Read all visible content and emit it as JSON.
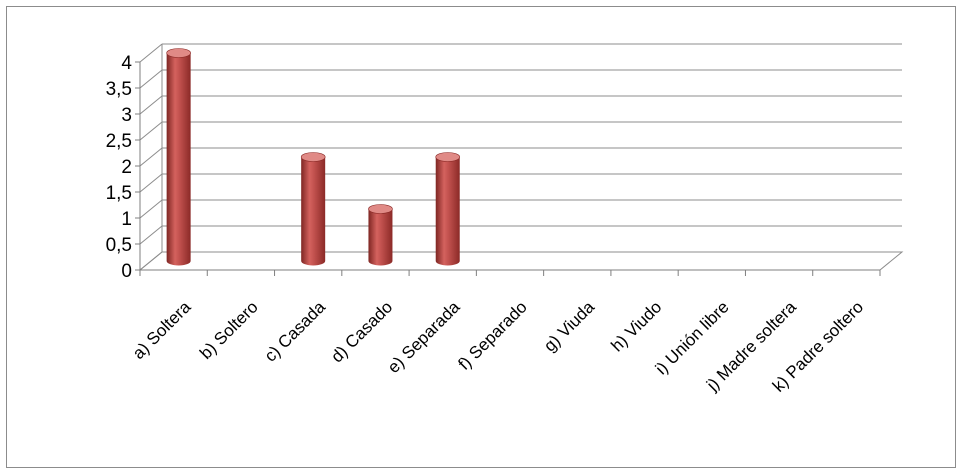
{
  "chart_data": {
    "type": "bar",
    "style": "3d-cylinder",
    "categories": [
      "a) Soltera",
      "b) Soltero",
      "c) Casada",
      "d) Casado",
      "e) Separada",
      "f) Separado",
      "g) Viuda",
      "h) Viudo",
      "i) Unión libre",
      "j) Madre soltera",
      "k) Padre soltero"
    ],
    "values": [
      4,
      0,
      2,
      1,
      2,
      0,
      0,
      0,
      0,
      0,
      0
    ],
    "yticks": [
      "0",
      "0,5",
      "1",
      "1,5",
      "2",
      "2,5",
      "3",
      "3,5",
      "4"
    ],
    "ylim": [
      0,
      4
    ],
    "title": "",
    "xlabel": "",
    "ylabel": "",
    "grid": true,
    "legend": "none",
    "colors": {
      "bar": "#c0504d",
      "bar_dark": "#8b2a27",
      "bar_light": "#e08a86",
      "grid": "#8c8c8c",
      "axis": "#7f7f7f"
    }
  }
}
